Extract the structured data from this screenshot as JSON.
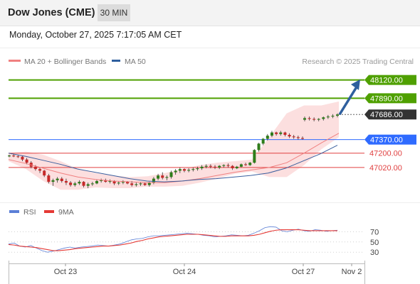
{
  "header": {
    "title": "Dow Jones (CME)",
    "interval": "30 MIN",
    "datetime": "Monday, October 27, 2025 7:17:05 AM CET"
  },
  "legend": {
    "ma20": "MA 20 + Bollinger Bands",
    "ma50": "MA 50",
    "credit": "Research © 2025 Trading Central",
    "rsi": "RSI",
    "ma9": "9MA"
  },
  "colors": {
    "resistance": "#4fa000",
    "pivot": "#2f6bff",
    "support": "#e04040",
    "last": "#333333",
    "candle_up": "#2e7d1a",
    "candle_down": "#c62828",
    "ma20": "#f08080",
    "ma50": "#3a5f9e",
    "bollinger": "#fbd4d4",
    "arrow": "#2e5f9e"
  },
  "chart_data": [
    {
      "type": "candlestick",
      "ylim": [
        46600,
        48250
      ],
      "x_ticks": [
        "Oct 23",
        "Oct 24",
        "Oct 27",
        "Nov 2"
      ],
      "levels": [
        {
          "value": 48120,
          "label": "48120.00",
          "kind": "resistance"
        },
        {
          "value": 47890,
          "label": "47890.00",
          "kind": "resistance"
        },
        {
          "value": 47686,
          "label": "47686.00",
          "kind": "last"
        },
        {
          "value": 47370,
          "label": "47370.00",
          "kind": "pivot"
        },
        {
          "value": 47200,
          "label": "47200.00",
          "kind": "support"
        },
        {
          "value": 47020,
          "label": "47020.00",
          "kind": "support"
        }
      ],
      "candles": [
        [
          47160,
          47180,
          47150,
          47170
        ],
        [
          47170,
          47190,
          47150,
          47160
        ],
        [
          47160,
          47175,
          47140,
          47155
        ],
        [
          47155,
          47170,
          47100,
          47120
        ],
        [
          47120,
          47140,
          47060,
          47080
        ],
        [
          47080,
          47100,
          47010,
          47030
        ],
        [
          47030,
          47050,
          46980,
          47000
        ],
        [
          47000,
          47020,
          46950,
          46980
        ],
        [
          46980,
          46990,
          46900,
          46920
        ],
        [
          46920,
          46940,
          46820,
          46840
        ],
        [
          46840,
          46880,
          46790,
          46860
        ],
        [
          46860,
          46900,
          46830,
          46880
        ],
        [
          46880,
          46900,
          46830,
          46850
        ],
        [
          46850,
          46880,
          46800,
          46830
        ],
        [
          46830,
          46850,
          46780,
          46800
        ],
        [
          46800,
          46840,
          46780,
          46820
        ],
        [
          46820,
          46860,
          46800,
          46840
        ],
        [
          46840,
          46850,
          46770,
          46790
        ],
        [
          46790,
          46830,
          46760,
          46810
        ],
        [
          46810,
          46840,
          46790,
          46820
        ],
        [
          46820,
          46870,
          46810,
          46850
        ],
        [
          46850,
          46880,
          46830,
          46860
        ],
        [
          46860,
          46880,
          46830,
          46840
        ],
        [
          46840,
          46870,
          46820,
          46850
        ],
        [
          46850,
          46860,
          46800,
          46820
        ],
        [
          46820,
          46850,
          46800,
          46830
        ],
        [
          46830,
          46860,
          46810,
          46840
        ],
        [
          46840,
          46850,
          46810,
          46820
        ],
        [
          46820,
          46850,
          46780,
          46800
        ],
        [
          46800,
          46830,
          46780,
          46810
        ],
        [
          46810,
          46840,
          46790,
          46820
        ],
        [
          46820,
          46830,
          46790,
          46800
        ],
        [
          46800,
          46840,
          46780,
          46830
        ],
        [
          46830,
          46900,
          46810,
          46880
        ],
        [
          46880,
          46940,
          46860,
          46920
        ],
        [
          46920,
          46960,
          46870,
          46890
        ],
        [
          46890,
          46920,
          46860,
          46900
        ],
        [
          46900,
          46980,
          46880,
          46960
        ],
        [
          46960,
          47000,
          46930,
          46980
        ],
        [
          46980,
          47020,
          46950,
          47000
        ],
        [
          47000,
          47010,
          46960,
          46980
        ],
        [
          46980,
          47010,
          46960,
          46990
        ],
        [
          46990,
          47020,
          46970,
          47000
        ],
        [
          47000,
          47030,
          46980,
          47010
        ],
        [
          47010,
          47050,
          46990,
          47030
        ],
        [
          47030,
          47060,
          47010,
          47040
        ],
        [
          47040,
          47060,
          47010,
          47030
        ],
        [
          47030,
          47050,
          47000,
          47020
        ],
        [
          47020,
          47050,
          47000,
          47040
        ],
        [
          47040,
          47060,
          47020,
          47050
        ],
        [
          47050,
          47070,
          47020,
          47040
        ],
        [
          47040,
          47050,
          46990,
          47010
        ],
        [
          47010,
          47040,
          47000,
          47030
        ],
        [
          47030,
          47070,
          47020,
          47060
        ],
        [
          47060,
          47080,
          47040,
          47050
        ],
        [
          47050,
          47090,
          47040,
          47080
        ],
        [
          47080,
          47250,
          47070,
          47240
        ],
        [
          47240,
          47330,
          47220,
          47320
        ],
        [
          47320,
          47390,
          47300,
          47380
        ],
        [
          47380,
          47440,
          47360,
          47420
        ],
        [
          47420,
          47480,
          47400,
          47460
        ],
        [
          47460,
          47470,
          47420,
          47440
        ],
        [
          47440,
          47480,
          47420,
          47460
        ],
        [
          47460,
          47470,
          47410,
          47430
        ],
        [
          47430,
          47450,
          47390,
          47410
        ],
        [
          47410,
          47430,
          47380,
          47400
        ],
        [
          47400,
          47420,
          47370,
          47390
        ],
        [
          47390,
          47410,
          47370,
          47380
        ],
        [
          47620,
          47660,
          47600,
          47640
        ],
        [
          47640,
          47660,
          47610,
          47630
        ],
        [
          47630,
          47650,
          47600,
          47620
        ],
        [
          47620,
          47640,
          47600,
          47630
        ],
        [
          47630,
          47660,
          47610,
          47650
        ],
        [
          47650,
          47680,
          47630,
          47660
        ],
        [
          47660,
          47690,
          47640,
          47670
        ],
        [
          47670,
          47700,
          47650,
          47686
        ]
      ],
      "ma20": [
        [
          47160,
          47120
        ],
        [
          47100,
          47070
        ],
        [
          47000,
          47010
        ],
        [
          46900,
          46950
        ],
        [
          46880,
          46900
        ],
        [
          46860,
          46870
        ],
        [
          46840,
          46850
        ],
        [
          46840,
          46840
        ],
        [
          46850,
          46830
        ],
        [
          46880,
          46830
        ],
        [
          46920,
          46850
        ],
        [
          46960,
          46880
        ],
        [
          47000,
          46920
        ],
        [
          47030,
          46960
        ],
        [
          47060,
          46990
        ],
        [
          47250,
          47020
        ],
        [
          47450,
          47080
        ],
        [
          47600,
          47200
        ],
        [
          47660,
          47330
        ],
        [
          47700,
          47450
        ]
      ],
      "bollinger": {
        "upper": [
          47200,
          47220,
          47180,
          47100,
          47000,
          46950,
          46920,
          46900,
          46910,
          46950,
          47000,
          47050,
          47080,
          47100,
          47120,
          47400,
          47700,
          47800,
          47800,
          47850
        ],
        "lower": [
          47100,
          47000,
          46850,
          46740,
          46740,
          46770,
          46760,
          46760,
          46780,
          46780,
          46790,
          46830,
          46880,
          46940,
          46970,
          46900,
          46900,
          47050,
          47250,
          47400
        ]
      },
      "ma50": [
        47200,
        47160,
        47110,
        47060,
        47000,
        46960,
        46920,
        46880,
        46850,
        46840,
        46850,
        46870,
        46880,
        46900,
        46920,
        46950,
        47010,
        47100,
        47190,
        47300
      ]
    },
    {
      "type": "line",
      "ylim": [
        15,
        90
      ],
      "y_ticks": [
        70,
        50,
        30
      ],
      "series": [
        {
          "name": "RSI",
          "values": [
            46,
            48,
            42,
            40,
            43,
            38,
            33,
            30,
            32,
            35,
            38,
            40,
            38,
            40,
            41,
            42,
            44,
            43,
            42,
            44,
            46,
            50,
            54,
            56,
            57,
            60,
            62,
            62,
            63,
            64,
            65,
            66,
            67,
            66,
            65,
            63,
            62,
            60,
            61,
            62,
            64,
            63,
            62,
            63,
            67,
            72,
            78,
            80,
            79,
            72,
            70,
            73,
            75,
            72,
            71,
            74,
            73,
            71,
            72,
            73
          ]
        },
        {
          "name": "9MA",
          "values": [
            45,
            44,
            42,
            41,
            40,
            39,
            37,
            35,
            33,
            33,
            34,
            35,
            37,
            38,
            39,
            40,
            41,
            42,
            42,
            43,
            44,
            46,
            48,
            51,
            53,
            56,
            58,
            60,
            61,
            62,
            63,
            64,
            65,
            65,
            65,
            64,
            63,
            62,
            61,
            61,
            62,
            62,
            62,
            62,
            63,
            65,
            68,
            71,
            73,
            74,
            74,
            74,
            74,
            73,
            72,
            72,
            72,
            72,
            72,
            72
          ]
        }
      ]
    }
  ]
}
